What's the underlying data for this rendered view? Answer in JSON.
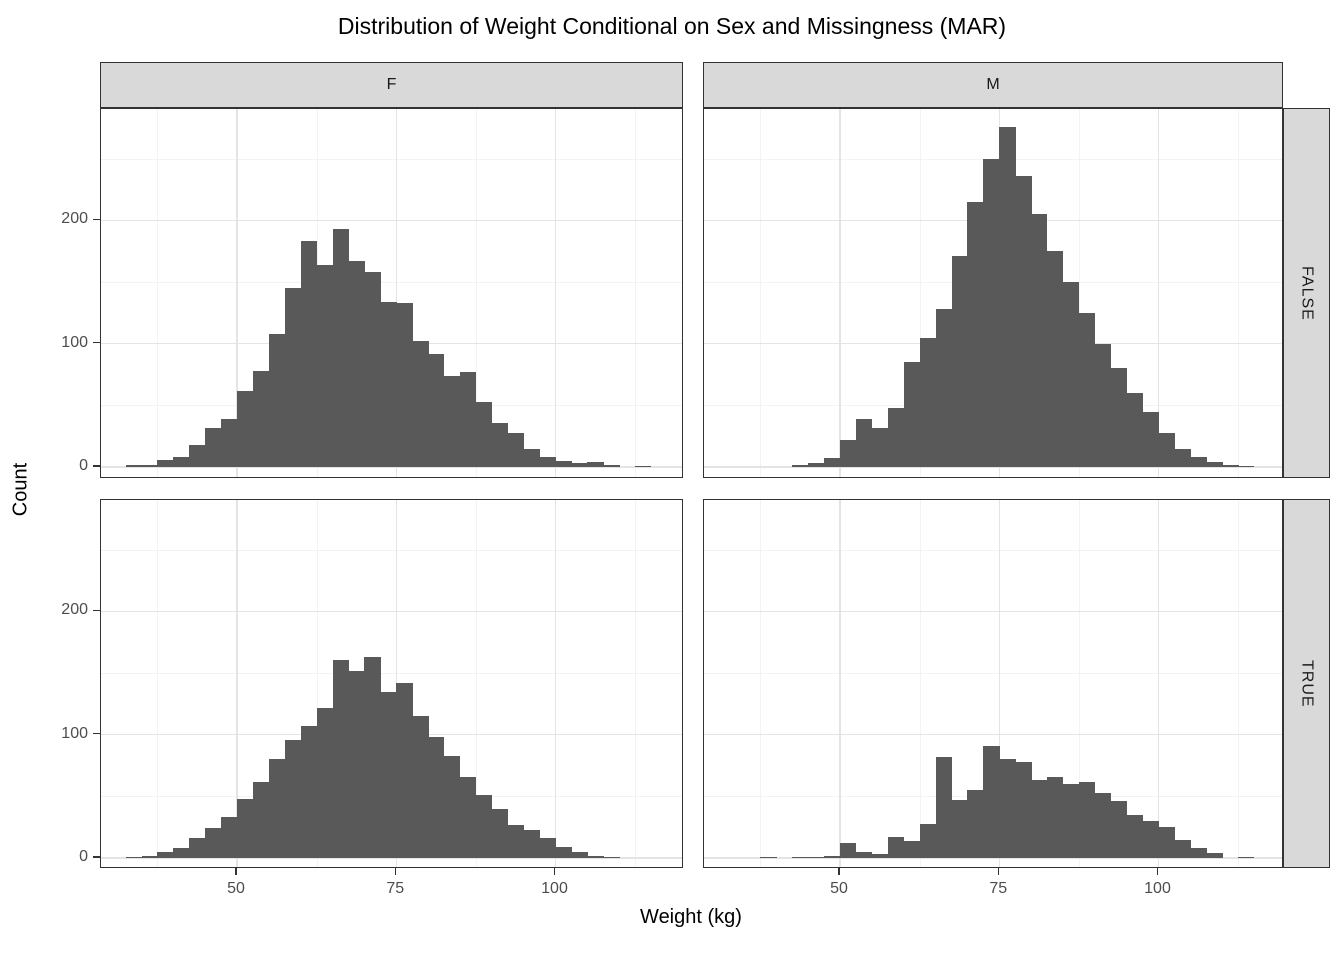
{
  "title": "Distribution of Weight Conditional on Sex and Missingness (MAR)",
  "chart_data": {
    "type": "bar",
    "subtype": "faceted_histogram",
    "title": "Distribution of Weight Conditional on Sex and Missingness (MAR)",
    "xlabel": "Weight (kg)",
    "ylabel": "Count",
    "facet_rule": "columns = Sex (F, M), rows = Missingness (FALSE, TRUE)",
    "col_facets": [
      "F",
      "M"
    ],
    "row_facets": [
      "FALSE",
      "TRUE"
    ],
    "x_tick_labels": [
      "50",
      "75",
      "100"
    ],
    "y_tick_labels": [
      "0",
      "100",
      "200"
    ],
    "x_ticks": [
      50,
      75,
      100
    ],
    "y_ticks": [
      0,
      100,
      200
    ],
    "x_minor_ticks": [
      37.5,
      62.5,
      87.5,
      112.5
    ],
    "y_minor_ticks": [
      50,
      150,
      250
    ],
    "xlim": [
      28.6,
      120.1
    ],
    "ylim": [
      0,
      290
    ],
    "grid": true,
    "legend": "none",
    "bin_width_kg": 2.5,
    "facets": [
      {
        "id": "f-false",
        "col": "F",
        "row": "FALSE",
        "bin_start_kg": 32.5,
        "counts": [
          2,
          2,
          6,
          8,
          18,
          32,
          39,
          62,
          78,
          108,
          145,
          183,
          164,
          193,
          167,
          158,
          134,
          133,
          102,
          92,
          74,
          77,
          53,
          36,
          28,
          15,
          8,
          5,
          3,
          4,
          2,
          0,
          1
        ]
      },
      {
        "id": "m-false",
        "col": "M",
        "row": "FALSE",
        "bin_start_kg": 42.5,
        "counts": [
          2,
          3,
          7,
          22,
          39,
          32,
          48,
          85,
          105,
          128,
          171,
          215,
          250,
          276,
          236,
          205,
          175,
          150,
          125,
          100,
          80,
          60,
          45,
          28,
          15,
          8,
          4,
          2,
          1
        ]
      },
      {
        "id": "f-true",
        "col": "F",
        "row": "TRUE",
        "bin_start_kg": 32.5,
        "counts": [
          1,
          2,
          5,
          8,
          16,
          24,
          33,
          48,
          62,
          80,
          96,
          107,
          122,
          161,
          152,
          163,
          135,
          142,
          115,
          98,
          83,
          66,
          51,
          40,
          27,
          23,
          16,
          9,
          5,
          2,
          1
        ]
      },
      {
        "id": "m-true",
        "col": "M",
        "row": "TRUE",
        "bin_start_kg": 37.5,
        "counts": [
          1,
          0,
          1,
          1,
          2,
          12,
          5,
          3,
          17,
          14,
          28,
          82,
          47,
          55,
          91,
          80,
          78,
          63,
          66,
          60,
          62,
          53,
          46,
          35,
          30,
          25,
          15,
          8,
          4,
          0,
          1
        ]
      }
    ],
    "colors": {
      "bar_fill": "#595959",
      "strip_background": "#D9D9D9",
      "panel_background": "#FFFFFF",
      "panel_border": "#333333",
      "grid_major": "#E4E4E4",
      "grid_minor": "#F3F3F3",
      "axis_text": "#4D4D4D",
      "title_text": "#000000"
    }
  }
}
